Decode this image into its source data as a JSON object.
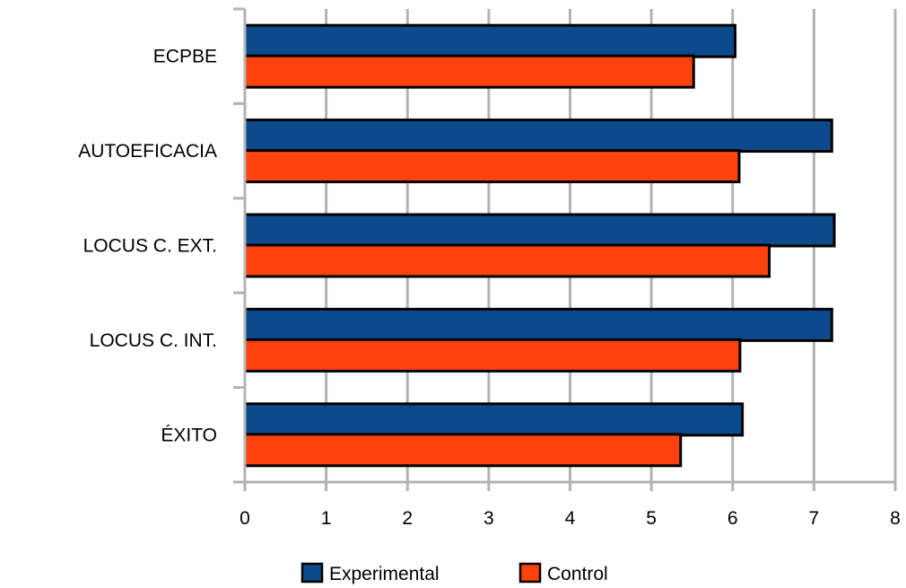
{
  "chart_data": {
    "type": "bar",
    "orientation": "horizontal",
    "categories": [
      "ECPBE",
      "AUTOEFICACIA",
      "LOCUS C.  EXT.",
      "LOCUS C.  INT.",
      "ÉXITO"
    ],
    "series": [
      {
        "name": "Experimental",
        "color": "#0d4a8c",
        "values": [
          6.03,
          7.22,
          7.25,
          7.22,
          6.12
        ]
      },
      {
        "name": "Control",
        "color": "#ff420e",
        "values": [
          5.52,
          6.08,
          6.45,
          6.09,
          5.36
        ]
      }
    ],
    "xlim": [
      0,
      8
    ],
    "xticks": [
      "0",
      "1",
      "2",
      "3",
      "4",
      "5",
      "6",
      "7",
      "8"
    ],
    "grid": true,
    "legend_position": "bottom",
    "title": "",
    "xlabel": "",
    "ylabel": ""
  }
}
